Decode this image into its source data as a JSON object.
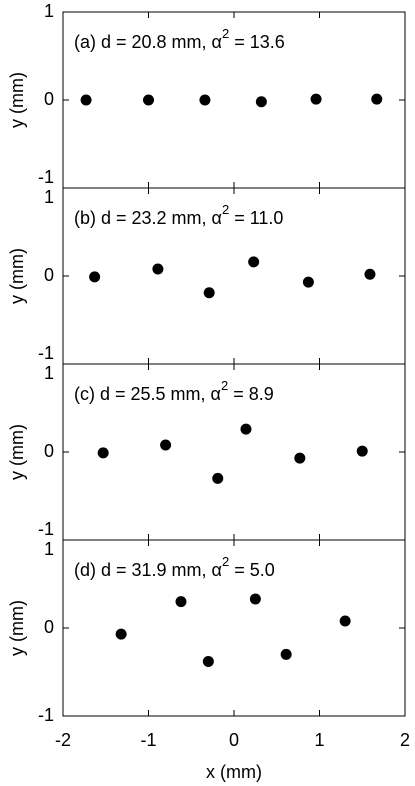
{
  "chart_data": [
    {
      "type": "scatter",
      "annotation": [
        "(a) d = 20.8 mm, α",
        "2",
        " = 13.6"
      ],
      "ylabel": "y (mm)",
      "x": [
        -1.73,
        -1.0,
        -0.34,
        0.32,
        0.96,
        1.67
      ],
      "values": [
        0,
        0,
        0,
        -0.02,
        0.01,
        0.01
      ],
      "color": "#000000",
      "xlim": [
        -2,
        2
      ],
      "xticks": [
        -2,
        -1,
        0,
        1,
        2
      ],
      "ylim": [
        -1,
        1
      ],
      "yticks": [
        -1,
        0,
        1
      ]
    },
    {
      "type": "scatter",
      "annotation": [
        "(b) d = 23.2 mm, α",
        "2",
        " = 11.0"
      ],
      "ylabel": "y (mm)",
      "x": [
        -1.63,
        -0.89,
        -0.29,
        0.23,
        0.87,
        1.59
      ],
      "values": [
        -0.01,
        0.08,
        -0.19,
        0.16,
        -0.07,
        0.02
      ],
      "color": "#000000",
      "xlim": [
        -2,
        2
      ],
      "xticks": [
        -2,
        -1,
        0,
        1,
        2
      ],
      "ylim": [
        -1,
        1
      ],
      "yticks": [
        -1,
        0,
        1
      ]
    },
    {
      "type": "scatter",
      "annotation": [
        "(c) d = 25.5 mm, α",
        "2",
        " = 8.9"
      ],
      "ylabel": "y (mm)",
      "x": [
        -1.53,
        -0.8,
        -0.19,
        0.14,
        0.77,
        1.5
      ],
      "values": [
        -0.01,
        0.08,
        -0.3,
        0.26,
        -0.07,
        0.01
      ],
      "color": "#000000",
      "xlim": [
        -2,
        2
      ],
      "xticks": [
        -2,
        -1,
        0,
        1,
        2
      ],
      "ylim": [
        -1,
        1
      ],
      "yticks": [
        -1,
        0,
        1
      ]
    },
    {
      "type": "scatter",
      "annotation": [
        "(d) d = 31.9 mm, α",
        "2",
        " = 5.0"
      ],
      "ylabel": "y (mm)",
      "xlabel": "x (mm)",
      "x": [
        -1.32,
        -0.62,
        -0.3,
        0.25,
        0.61,
        1.3
      ],
      "values": [
        -0.07,
        0.3,
        -0.38,
        0.33,
        -0.3,
        0.08
      ],
      "color": "#000000",
      "xlim": [
        -2,
        2
      ],
      "xticks": [
        -2,
        -1,
        0,
        1,
        2
      ],
      "ylim": [
        -1,
        1
      ],
      "yticks": [
        -1,
        0,
        1
      ]
    }
  ]
}
